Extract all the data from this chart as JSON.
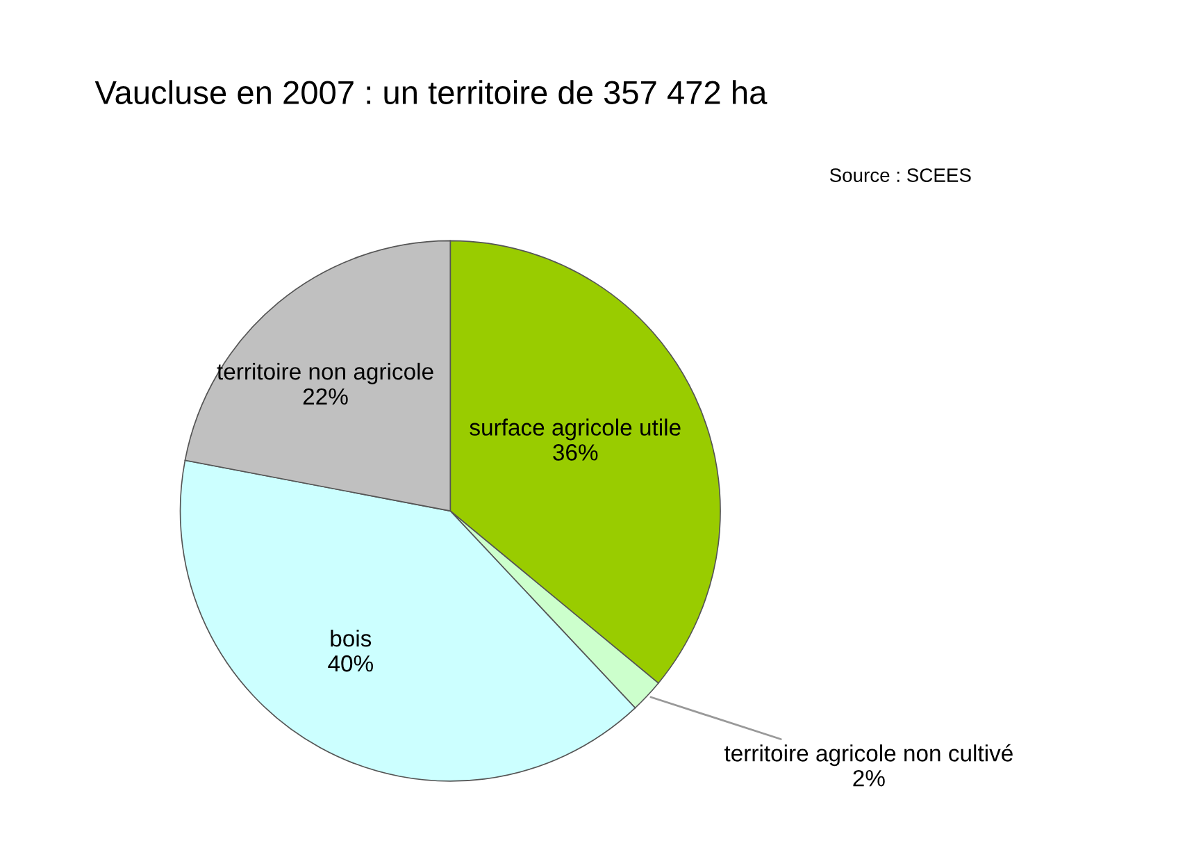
{
  "chart_data": {
    "type": "pie",
    "title": "Vaucluse en 2007 : un territoire de 357 472 ha",
    "categories": [
      "surface agricole utile",
      "territoire agricole non cultivé",
      "bois",
      "territoire non agricole"
    ],
    "values": [
      36,
      2,
      40,
      22
    ],
    "colors": [
      "#99cc00",
      "#ccffcc",
      "#ccffff",
      "#c0c0c0"
    ],
    "value_labels": [
      "36%",
      "2%",
      "40%",
      "22%"
    ],
    "annotations": [
      "Source : SCEES"
    ],
    "legend": false
  }
}
